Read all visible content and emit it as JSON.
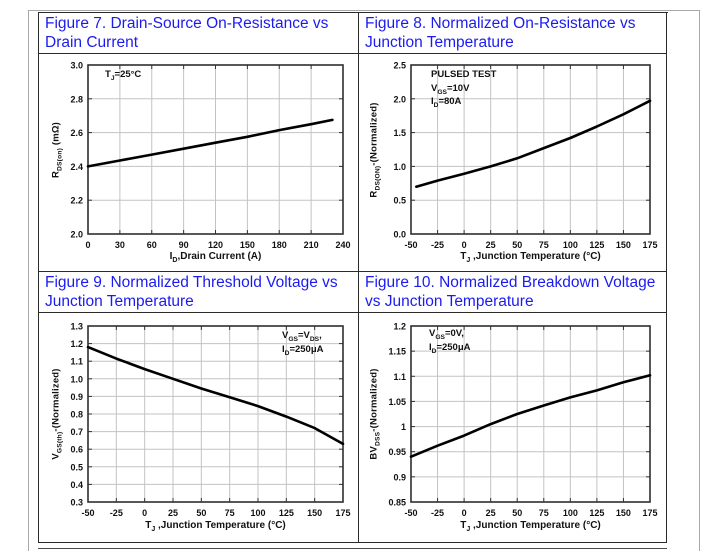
{
  "page": {
    "accent_blue": "#1b1bf0",
    "curve_color": "#000000",
    "grid_color": "#c3c3c3"
  },
  "figures": [
    {
      "title": "Figure 7. Drain-Source On-Resistance vs Drain Current",
      "ylabel": {
        "a": "R",
        "sub": "DS(on)",
        "b": " (mΩ)"
      },
      "xlabel": {
        "a": "I",
        "sub": "D",
        "b": ",Drain Current (A)"
      },
      "annotations": [
        {
          "a": "T",
          "sub": "J",
          "b": "=25°C"
        }
      ]
    },
    {
      "title": "Figure 8. Normalized On-Resistance vs Junction Temperature",
      "ylabel": {
        "a": "R",
        "sub": "DS(ON)",
        "b": "-(Normalized)"
      },
      "xlabel": {
        "a": "T",
        "sub": "J",
        "b": " ,Junction Temperature (°C)"
      },
      "annotations": [
        {
          "a": "PULSED TEST",
          "sub": "",
          "b": ""
        },
        {
          "a": "V",
          "sub": "GS",
          "b": "=10V"
        },
        {
          "a": "I",
          "sub": "D",
          "b": "=80A"
        }
      ]
    },
    {
      "title": "Figure 9. Normalized Threshold Voltage vs Junction Temperature",
      "ylabel": {
        "a": "V",
        "sub": "GS(th)",
        "b": "-(Normalized)"
      },
      "xlabel": {
        "a": "T",
        "sub": "J",
        "b": " ,Junction Temperature (°C)"
      },
      "annotations": [
        {
          "a": "V",
          "sub": "GS",
          "b": "=V",
          "sub2": "DS",
          "c": ","
        },
        {
          "a": "I",
          "sub": "D",
          "b": "=250μA"
        }
      ]
    },
    {
      "title": "Figure 10. Normalized Breakdown Voltage vs Junction Temperature",
      "ylabel": {
        "a": "BV",
        "sub": "DSS",
        "b": "-(Normalized)"
      },
      "xlabel": {
        "a": "T",
        "sub": "J",
        "b": " ,Junction Temperature (°C)"
      },
      "annotations": [
        {
          "a": "V",
          "sub": "GS",
          "b": "=0V,"
        },
        {
          "a": "I",
          "sub": "D",
          "b": "=250μA"
        }
      ]
    }
  ],
  "chart_data": [
    {
      "type": "line",
      "title": "Drain-Source On-Resistance vs Drain Current",
      "xlabel": "ID, Drain Current (A)",
      "ylabel": "RDS(on) (mΩ)",
      "annotations": [
        "TJ=25°C"
      ],
      "grid": true,
      "xlim": [
        0,
        240
      ],
      "ylim": [
        2.0,
        3.0
      ],
      "xticks": [
        [
          0,
          "0"
        ],
        [
          30,
          "30"
        ],
        [
          60,
          "60"
        ],
        [
          90,
          "90"
        ],
        [
          120,
          "120"
        ],
        [
          150,
          "150"
        ],
        [
          180,
          "180"
        ],
        [
          210,
          "210"
        ],
        [
          240,
          "240"
        ]
      ],
      "yticks": [
        [
          2.0,
          "2.0"
        ],
        [
          2.2,
          "2.2"
        ],
        [
          2.4,
          "2.4"
        ],
        [
          2.6,
          "2.6"
        ],
        [
          2.8,
          "2.8"
        ],
        [
          3.0,
          "3.0"
        ]
      ],
      "points": [
        [
          0,
          2.4
        ],
        [
          30,
          2.435
        ],
        [
          60,
          2.47
        ],
        [
          90,
          2.505
        ],
        [
          120,
          2.54
        ],
        [
          150,
          2.575
        ],
        [
          180,
          2.615
        ],
        [
          210,
          2.65
        ],
        [
          230,
          2.675
        ]
      ]
    },
    {
      "type": "line",
      "title": "Normalized On-Resistance vs Junction Temperature",
      "xlabel": "TJ, Junction Temperature (°C)",
      "ylabel": "RDS(ON)-(Normalized)",
      "annotations": [
        "PULSED TEST",
        "VGS=10V",
        "ID=80A"
      ],
      "grid": true,
      "xlim": [
        -50,
        175
      ],
      "ylim": [
        0.0,
        2.5
      ],
      "xticks": [
        [
          -50,
          "-50"
        ],
        [
          -25,
          "-25"
        ],
        [
          0,
          "0"
        ],
        [
          25,
          "25"
        ],
        [
          50,
          "50"
        ],
        [
          75,
          "75"
        ],
        [
          100,
          "100"
        ],
        [
          125,
          "125"
        ],
        [
          150,
          "150"
        ],
        [
          175,
          "175"
        ]
      ],
      "yticks": [
        [
          0.0,
          "0.0"
        ],
        [
          0.5,
          "0.5"
        ],
        [
          1.0,
          "1.0"
        ],
        [
          1.5,
          "1.5"
        ],
        [
          2.0,
          "2.0"
        ],
        [
          2.5,
          "2.5"
        ]
      ],
      "points": [
        [
          -45,
          0.7
        ],
        [
          -25,
          0.79
        ],
        [
          0,
          0.89
        ],
        [
          25,
          1.0
        ],
        [
          50,
          1.12
        ],
        [
          75,
          1.27
        ],
        [
          100,
          1.42
        ],
        [
          125,
          1.59
        ],
        [
          150,
          1.77
        ],
        [
          175,
          1.97
        ]
      ]
    },
    {
      "type": "line",
      "title": "Normalized Threshold Voltage vs Junction Temperature",
      "xlabel": "TJ, Junction Temperature (°C)",
      "ylabel": "VGS(th)-(Normalized)",
      "annotations": [
        "VGS=VDS,",
        "ID=250μA"
      ],
      "grid": true,
      "xlim": [
        -50,
        175
      ],
      "ylim": [
        0.3,
        1.3
      ],
      "xticks": [
        [
          -50,
          "-50"
        ],
        [
          -25,
          "-25"
        ],
        [
          0,
          "0"
        ],
        [
          25,
          "25"
        ],
        [
          50,
          "50"
        ],
        [
          75,
          "75"
        ],
        [
          100,
          "100"
        ],
        [
          125,
          "125"
        ],
        [
          150,
          "150"
        ],
        [
          175,
          "175"
        ]
      ],
      "yticks": [
        [
          0.3,
          "0.3"
        ],
        [
          0.4,
          "0.4"
        ],
        [
          0.5,
          "0.5"
        ],
        [
          0.6,
          "0.6"
        ],
        [
          0.7,
          "0.7"
        ],
        [
          0.8,
          "0.8"
        ],
        [
          0.9,
          "0.9"
        ],
        [
          1.0,
          "1.0"
        ],
        [
          1.1,
          "1.1"
        ],
        [
          1.2,
          "1.2"
        ],
        [
          1.3,
          "1.3"
        ]
      ],
      "points": [
        [
          -50,
          1.18
        ],
        [
          -25,
          1.115
        ],
        [
          0,
          1.055
        ],
        [
          25,
          1.0
        ],
        [
          50,
          0.945
        ],
        [
          75,
          0.895
        ],
        [
          100,
          0.845
        ],
        [
          125,
          0.785
        ],
        [
          150,
          0.72
        ],
        [
          175,
          0.63
        ]
      ]
    },
    {
      "type": "line",
      "title": "Normalized Breakdown Voltage vs Junction Temperature",
      "xlabel": "TJ, Junction Temperature (°C)",
      "ylabel": "BVDSS-(Normalized)",
      "annotations": [
        "VGS=0V,",
        "ID=250μA"
      ],
      "grid": true,
      "xlim": [
        -50,
        175
      ],
      "ylim": [
        0.85,
        1.2
      ],
      "xticks": [
        [
          -50,
          "-50"
        ],
        [
          -25,
          "-25"
        ],
        [
          0,
          "0"
        ],
        [
          25,
          "25"
        ],
        [
          50,
          "50"
        ],
        [
          75,
          "75"
        ],
        [
          100,
          "100"
        ],
        [
          125,
          "125"
        ],
        [
          150,
          "150"
        ],
        [
          175,
          "175"
        ]
      ],
      "yticks": [
        [
          0.85,
          "0.85"
        ],
        [
          0.9,
          "0.9"
        ],
        [
          0.95,
          "0.95"
        ],
        [
          1.0,
          "1"
        ],
        [
          1.05,
          "1.05"
        ],
        [
          1.1,
          "1.1"
        ],
        [
          1.15,
          "1.15"
        ],
        [
          1.2,
          "1.2"
        ]
      ],
      "points": [
        [
          -50,
          0.94
        ],
        [
          -25,
          0.962
        ],
        [
          0,
          0.982
        ],
        [
          25,
          1.005
        ],
        [
          50,
          1.025
        ],
        [
          75,
          1.042
        ],
        [
          100,
          1.058
        ],
        [
          125,
          1.072
        ],
        [
          150,
          1.088
        ],
        [
          175,
          1.102
        ]
      ]
    }
  ]
}
